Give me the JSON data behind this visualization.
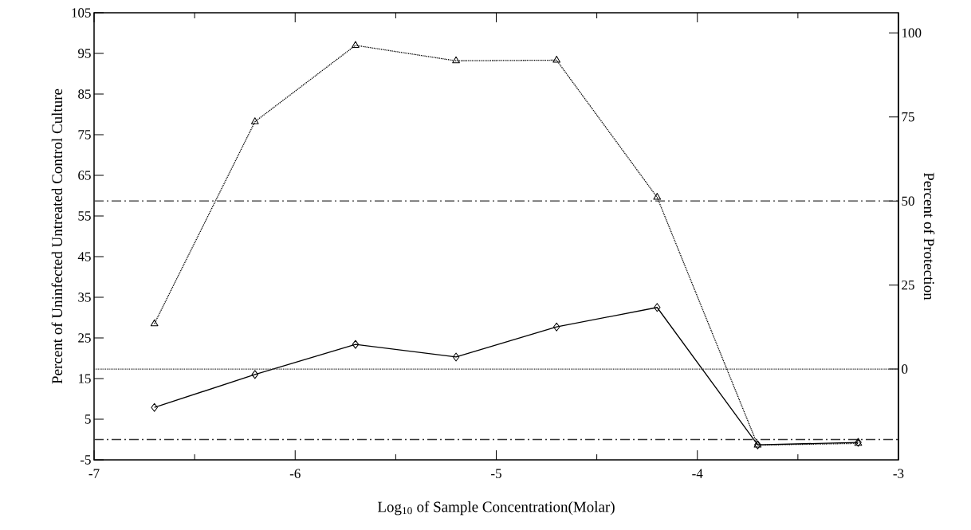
{
  "chart_data": {
    "type": "line",
    "xlabel": "Log$_{10}$ of Sample Concentration(Molar)",
    "ylabel": "Percent of Uninfected Untreated Control Culture",
    "y2label": "Percent of Protection",
    "x": [
      -6.7,
      -6.2,
      -5.7,
      -5.2,
      -4.7,
      -4.2,
      -3.7,
      -3.2
    ],
    "series": [
      {
        "color": "#000000",
        "marker": "diamond",
        "line_style": "solid",
        "values": [
          7.9,
          16.0,
          23.4,
          20.3,
          27.7,
          32.5,
          -1.3,
          -0.7
        ]
      },
      {
        "color": "#000000",
        "marker": "triangle",
        "line_style": "dotted",
        "axis": "y2",
        "values": [
          13.5,
          73.6,
          96.3,
          91.7,
          91.9,
          51.1,
          -22.6,
          -22.1
        ]
      }
    ],
    "xlim": [
      -7,
      -3
    ],
    "xticks": [
      -7,
      -6,
      -5,
      -4,
      -3
    ],
    "ylim": [
      -5,
      105
    ],
    "yticks": [
      -5,
      5,
      15,
      25,
      35,
      45,
      55,
      65,
      75,
      85,
      95,
      105
    ],
    "y2lim": [
      -27,
      106
    ],
    "y2ticks": [
      0,
      25,
      50,
      75,
      100
    ],
    "ref_lines": [
      {
        "axis": "y2",
        "value": 50,
        "line_style": "dashdot",
        "color": "#333333"
      },
      {
        "axis": "y2",
        "value": 0,
        "line_style": "dotted",
        "color": "#333333"
      },
      {
        "axis": "y",
        "value": 0,
        "line_style": "dashdot",
        "color": "#333333"
      }
    ],
    "grid": false
  }
}
